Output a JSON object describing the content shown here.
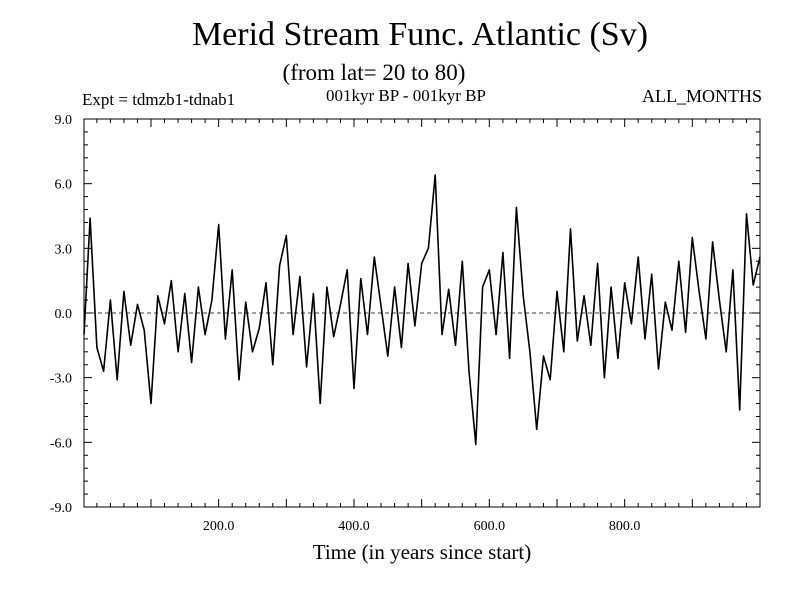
{
  "header": {
    "title": "Merid Stream Func. Atlantic (Sv)",
    "subtitle": "(from lat= 20 to 80)",
    "experiment": "Expt = tdmzb1-tdnab1",
    "period": "001kyr BP - 001kyr BP",
    "months": "ALL_MONTHS"
  },
  "chart_data": {
    "type": "line",
    "title": "Merid Stream Func. Atlantic (Sv)",
    "subtitle": "(from lat= 20 to 80)",
    "xlabel": "Time (in years since start)",
    "ylabel": "",
    "xlim": [
      1,
      1000
    ],
    "ylim": [
      -9,
      9
    ],
    "xticks": [
      200,
      400,
      600,
      800
    ],
    "xtick_labels": [
      "200.0",
      "400.0",
      "600.0",
      "800.0"
    ],
    "yticks": [
      -9,
      -6,
      -3,
      0,
      3,
      6,
      9
    ],
    "ytick_labels": [
      "-9.0",
      "-6.0",
      "-3.0",
      "0.0",
      "3.0",
      "6.0",
      "9.0"
    ],
    "zero_line": true,
    "grid": false,
    "line_color": "#000000",
    "series": [
      {
        "x": [
          1,
          10,
          20,
          30,
          40,
          50,
          60,
          70,
          80,
          90,
          100,
          110,
          120,
          130,
          140,
          150,
          160,
          170,
          180,
          190,
          200,
          210,
          220,
          230,
          240,
          250,
          260,
          270,
          280,
          290,
          300,
          310,
          320,
          330,
          340,
          350,
          360,
          370,
          380,
          390,
          400,
          410,
          420,
          430,
          440,
          450,
          460,
          470,
          480,
          490,
          500,
          510,
          520,
          530,
          540,
          550,
          560,
          570,
          580,
          590,
          600,
          610,
          620,
          630,
          640,
          650,
          660,
          670,
          680,
          690,
          700,
          710,
          720,
          730,
          740,
          750,
          760,
          770,
          780,
          790,
          800,
          810,
          820,
          830,
          840,
          850,
          860,
          870,
          880,
          890,
          900,
          910,
          920,
          930,
          940,
          950,
          960,
          970,
          980,
          990,
          1000
        ],
        "values": [
          -1.0,
          4.4,
          -1.6,
          -2.7,
          0.6,
          -3.1,
          1.0,
          -1.5,
          0.4,
          -0.8,
          -4.2,
          0.8,
          -0.5,
          1.5,
          -1.8,
          0.9,
          -2.3,
          1.2,
          -1.0,
          0.6,
          4.1,
          -1.2,
          2.0,
          -3.1,
          0.5,
          -1.8,
          -0.7,
          1.4,
          -2.4,
          2.2,
          3.6,
          -1.0,
          1.7,
          -2.5,
          0.9,
          -4.2,
          1.2,
          -1.1,
          0.4,
          2.0,
          -3.5,
          1.6,
          -1.0,
          2.6,
          0.3,
          -2.0,
          1.2,
          -1.6,
          2.3,
          -0.6,
          2.3,
          3.0,
          6.4,
          -1.0,
          1.1,
          -1.5,
          2.4,
          -2.7,
          -6.1,
          1.2,
          2.0,
          -1.0,
          2.8,
          -2.1,
          4.9,
          0.8,
          -1.8,
          -5.4,
          -2.0,
          -3.1,
          1.0,
          -1.8,
          3.9,
          -1.3,
          0.8,
          -1.5,
          2.3,
          -3.0,
          1.2,
          -2.1,
          1.4,
          -0.5,
          2.6,
          -1.2,
          1.8,
          -2.6,
          0.5,
          -0.8,
          2.4,
          -0.9,
          3.5,
          1.0,
          -1.2,
          3.3,
          0.6,
          -1.8,
          2.0,
          -4.5,
          4.6,
          1.3,
          2.6
        ]
      }
    ]
  }
}
